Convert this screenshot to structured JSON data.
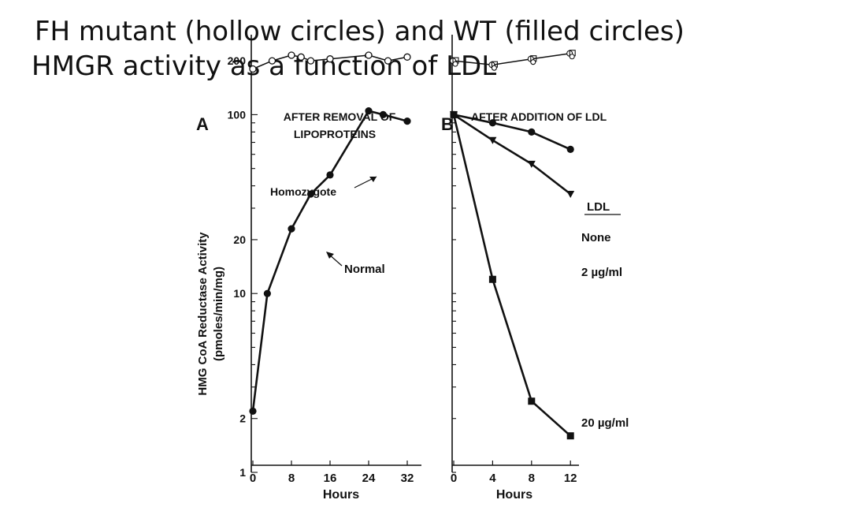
{
  "slide": {
    "title_line1": "FH mutant (hollow circles) and WT (filled circles)",
    "title_line2": "HMGR activity as a function of LDL"
  },
  "chart_data": [
    {
      "type": "line",
      "panel_label": "A",
      "title": "AFTER REMOVAL OF LIPOPROTEINS",
      "title_lines": [
        "AFTER REMOVAL OF",
        "LIPOPROTEINS"
      ],
      "xlabel": "Hours",
      "ylabel": "HMG CoA Reductase Activity",
      "ylabel_units": "(pmoles/min/mg)",
      "yscale": "log",
      "xlim": [
        0,
        32
      ],
      "ylim": [
        1,
        250
      ],
      "x_ticks": [
        "0",
        "8",
        "16",
        "24",
        "32"
      ],
      "y_ticks": [
        "1",
        "2",
        "10",
        "20",
        "100",
        "200"
      ],
      "series": [
        {
          "name": "Homozygote",
          "marker": "hollow-circle",
          "x": [
            0,
            4,
            8,
            10,
            12,
            16,
            24,
            28,
            32
          ],
          "y": [
            180,
            200,
            215,
            210,
            200,
            205,
            215,
            200,
            210
          ]
        },
        {
          "name": "Normal",
          "marker": "filled-circle",
          "x": [
            0,
            3,
            8,
            12,
            16,
            24,
            27,
            32
          ],
          "y": [
            2.2,
            10,
            23,
            36,
            46,
            105,
            100,
            92
          ]
        }
      ],
      "annotations": [
        "Homozygote",
        "Normal"
      ]
    },
    {
      "type": "line",
      "panel_label": "B",
      "title": "AFTER ADDITION OF LDL",
      "xlabel": "Hours",
      "yscale": "log",
      "xlim": [
        0,
        12
      ],
      "x_ticks": [
        "0",
        "4",
        "8",
        "12"
      ],
      "legend_title": "LDL",
      "series": [
        {
          "name": "Homozygote",
          "marker": "hollow-symbols",
          "x": [
            0,
            4,
            8,
            12
          ],
          "y": [
            200,
            190,
            205,
            220
          ]
        },
        {
          "name": "None",
          "marker": "filled-circle",
          "x": [
            0,
            4,
            8,
            12
          ],
          "y": [
            100,
            90,
            80,
            64
          ]
        },
        {
          "name": "2 µg/ml",
          "marker": "filled-triangle",
          "x": [
            0,
            4,
            8,
            12
          ],
          "y": [
            100,
            72,
            53,
            36
          ]
        },
        {
          "name": "20 µg/ml",
          "marker": "filled-square",
          "x": [
            0,
            4,
            8,
            12
          ],
          "y": [
            100,
            12,
            2.5,
            1.6
          ]
        }
      ]
    }
  ]
}
